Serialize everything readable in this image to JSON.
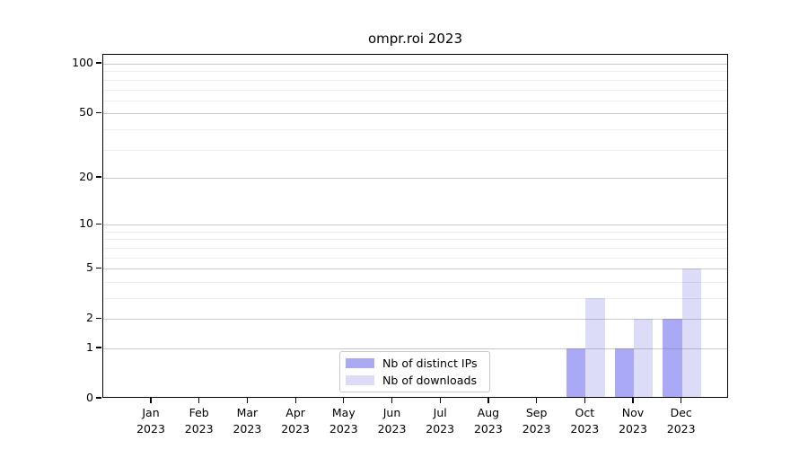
{
  "title": "ompr.roi 2023",
  "legend": {
    "items": [
      {
        "label": "Nb of distinct IPs"
      },
      {
        "label": "Nb of downloads"
      }
    ]
  },
  "chart_data": {
    "type": "bar",
    "title": "ompr.roi 2023",
    "categories": [
      "Jan",
      "Feb",
      "Mar",
      "Apr",
      "May",
      "Jun",
      "Jul",
      "Aug",
      "Sep",
      "Oct",
      "Nov",
      "Dec"
    ],
    "category_year": "2023",
    "series": [
      {
        "name": "Nb of distinct IPs",
        "color": "#a9a9f6",
        "values": [
          0,
          0,
          0,
          0,
          0,
          0,
          0,
          0,
          0,
          1,
          1,
          2
        ]
      },
      {
        "name": "Nb of downloads",
        "color": "#dcdcf8",
        "values": [
          0,
          0,
          0,
          0,
          0,
          0,
          0,
          0,
          0,
          3,
          2,
          5
        ]
      }
    ],
    "xlabel": "",
    "ylabel": "",
    "yscale": "log1p",
    "yticks": [
      0,
      1,
      2,
      5,
      10,
      20,
      50,
      100
    ],
    "yticks_minor": [
      3,
      4,
      6,
      7,
      8,
      9,
      30,
      40,
      60,
      70,
      80,
      90
    ],
    "ylim": [
      0,
      113
    ],
    "grid": true,
    "legend_position": "lower center"
  },
  "colors": {
    "bar_distinct_ips": "#a9a9f6",
    "bar_downloads": "#dcdcf8",
    "grid_major": "#7d7d7d",
    "grid_minor": "#ececec",
    "axis": "#000000",
    "legend_border": "#c9c9c9",
    "background": "#ffffff"
  }
}
